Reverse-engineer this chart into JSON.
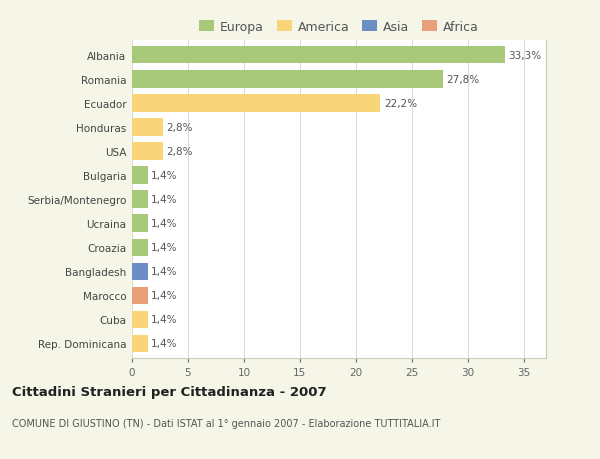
{
  "categories": [
    "Albania",
    "Romania",
    "Ecuador",
    "Honduras",
    "USA",
    "Bulgaria",
    "Serbia/Montenegro",
    "Ucraina",
    "Croazia",
    "Bangladesh",
    "Marocco",
    "Cuba",
    "Rep. Dominicana"
  ],
  "values": [
    33.3,
    27.8,
    22.2,
    2.8,
    2.8,
    1.4,
    1.4,
    1.4,
    1.4,
    1.4,
    1.4,
    1.4,
    1.4
  ],
  "labels": [
    "33,3%",
    "27,8%",
    "22,2%",
    "2,8%",
    "2,8%",
    "1,4%",
    "1,4%",
    "1,4%",
    "1,4%",
    "1,4%",
    "1,4%",
    "1,4%",
    "1,4%"
  ],
  "colors": [
    "#a8c87a",
    "#a8c87a",
    "#f9d57a",
    "#f9d57a",
    "#f9d57a",
    "#a8c87a",
    "#a8c87a",
    "#a8c87a",
    "#a8c87a",
    "#6b8fc4",
    "#e8a07a",
    "#f9d57a",
    "#f9d57a"
  ],
  "legend_labels": [
    "Europa",
    "America",
    "Asia",
    "Africa"
  ],
  "legend_colors": [
    "#a8c87a",
    "#f9d57a",
    "#6b8fc4",
    "#e8a07a"
  ],
  "title": "Cittadini Stranieri per Cittadinanza - 2007",
  "subtitle": "COMUNE DI GIUSTINO (TN) - Dati ISTAT al 1° gennaio 2007 - Elaborazione TUTTITALIA.IT",
  "xlim": [
    0,
    37
  ],
  "xticks": [
    0,
    5,
    10,
    15,
    20,
    25,
    30,
    35
  ],
  "background_color": "#f5f5e8",
  "plot_background": "#ffffff",
  "grid_color": "#ddddcc",
  "bar_height": 0.72
}
